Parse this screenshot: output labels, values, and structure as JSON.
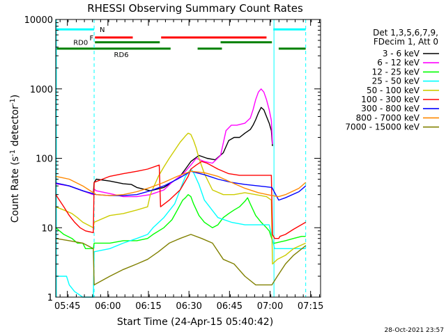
{
  "chart_data": {
    "type": "line",
    "title": "RHESSI Observing Summary Count Rates",
    "xlabel": "Start Time (24-Apr-15 05:40:42)",
    "ylabel_main": "Count Rate (s",
    "ylabel_sup1": "-1",
    "ylabel_mid": " detector",
    "ylabel_sup2": "-1",
    "ylabel_end": ")",
    "x_unit": "minutes after 05:40:42",
    "xlim": [
      0,
      98
    ],
    "ylim": [
      1,
      10000
    ],
    "yscale": "log",
    "x_ticks": [
      {
        "value": 4.3,
        "label": "05:45"
      },
      {
        "value": 19.3,
        "label": "06:00"
      },
      {
        "value": 34.3,
        "label": "06:15"
      },
      {
        "value": 49.3,
        "label": "06:30"
      },
      {
        "value": 64.3,
        "label": "06:45"
      },
      {
        "value": 79.3,
        "label": "07:00"
      },
      {
        "value": 94.3,
        "label": "07:15"
      }
    ],
    "y_ticks": [
      {
        "value": 1,
        "label": "1"
      },
      {
        "value": 10,
        "label": "10"
      },
      {
        "value": 100,
        "label": "100"
      },
      {
        "value": 1000,
        "label": "1000"
      },
      {
        "value": 10000,
        "label": "10000"
      }
    ],
    "vlines_solid": [
      0,
      80.5
    ],
    "vlines_dashed": [
      14.2,
      92.5
    ],
    "legend_header": [
      "Det 1,3,5,6,7,9,",
      "FDecim 1, Att 0"
    ],
    "footer_date": "28-Oct-2021 23:57",
    "flags": [
      {
        "label": "N",
        "color": "#00ffff",
        "level": 7200,
        "segments": [
          [
            0,
            14.2
          ],
          [
            80.5,
            92.5
          ]
        ]
      },
      {
        "label": "F",
        "color": "#ff0000",
        "level": 5500,
        "segments": [
          [
            14.5,
            28.5
          ],
          [
            39,
            78
          ]
        ]
      },
      {
        "label": "RD0",
        "color": "#008000",
        "level": 4700,
        "segments": [
          [
            14.5,
            38.5
          ],
          [
            61,
            80
          ]
        ]
      },
      {
        "label": "RD6",
        "color": "#008000",
        "level": 3800,
        "segments": [
          [
            0,
            42.5
          ],
          [
            52.5,
            61.5
          ],
          [
            82.5,
            92.5
          ]
        ]
      }
    ],
    "series": [
      {
        "name": "3 - 6 keV",
        "color": "#000000",
        "x": [
          0,
          5,
          10,
          13.9,
          14.2,
          15,
          20,
          25,
          28,
          30,
          35,
          40,
          43,
          46,
          48,
          50,
          53,
          56,
          59,
          62,
          64,
          66,
          68,
          70,
          72,
          73,
          74,
          75,
          76,
          77,
          78,
          79,
          79.8,
          80.2
        ],
        "y": [
          44,
          40,
          34,
          30,
          45,
          50,
          47,
          43,
          42,
          38,
          34,
          38,
          45,
          55,
          70,
          90,
          110,
          100,
          95,
          120,
          180,
          200,
          200,
          230,
          260,
          300,
          360,
          450,
          540,
          500,
          400,
          320,
          250,
          150
        ]
      },
      {
        "name": "6 - 12 keV",
        "color": "#ff00ff",
        "x": [
          0,
          5,
          10,
          13.9,
          14.2,
          15,
          20,
          25,
          28,
          30,
          35,
          40,
          43,
          46,
          48,
          50,
          52,
          55,
          58,
          61,
          63,
          65,
          67,
          70,
          72,
          73,
          74,
          75,
          76,
          77,
          78,
          79,
          79.8,
          80.2
        ],
        "y": [
          43,
          40,
          34,
          30,
          36,
          34,
          31,
          28,
          28,
          28,
          30,
          35,
          45,
          55,
          65,
          80,
          100,
          90,
          85,
          110,
          250,
          300,
          300,
          320,
          380,
          500,
          700,
          900,
          1000,
          900,
          700,
          500,
          350,
          160
        ]
      },
      {
        "name": "12 - 25 keV",
        "color": "#00ff00",
        "x": [
          0,
          3,
          6,
          8,
          10,
          11,
          13.9,
          14.2,
          20,
          25,
          30,
          34,
          36,
          40,
          43,
          45,
          47,
          48,
          49,
          50,
          51,
          53,
          55,
          58,
          60,
          62,
          64,
          66,
          68,
          70,
          71,
          72,
          74,
          76,
          78,
          79,
          80.5,
          81,
          85,
          88,
          91,
          92.5
        ],
        "y": [
          10,
          8,
          7,
          6,
          6,
          5,
          5,
          6,
          6,
          6.5,
          6.5,
          7,
          8,
          10,
          13,
          18,
          25,
          27,
          30,
          28,
          22,
          15,
          12,
          10,
          11,
          14,
          16,
          18,
          20,
          24,
          27,
          22,
          15,
          12,
          10,
          9,
          6,
          6,
          6.5,
          7,
          7.5,
          7.5
        ]
      },
      {
        "name": "25 - 50 keV",
        "color": "#00ffff",
        "x": [
          0,
          2,
          4,
          5,
          7,
          10,
          13.9,
          14.2,
          20,
          25,
          30,
          34,
          36,
          40,
          44,
          46,
          48,
          50,
          51,
          53,
          55,
          60,
          65,
          70,
          75,
          79,
          80.5,
          81,
          85,
          90,
          92.5
        ],
        "y": [
          2,
          2,
          2,
          1.5,
          1.2,
          1,
          1,
          4.5,
          5,
          6,
          7,
          8,
          10,
          14,
          22,
          35,
          55,
          70,
          62,
          42,
          25,
          14,
          12,
          11,
          11,
          11,
          6,
          5,
          5,
          5,
          5
        ]
      },
      {
        "name": "50 - 100 keV",
        "color": "#cccc00",
        "x": [
          0,
          3,
          6,
          8,
          10,
          13.9,
          14.2,
          20,
          25,
          30,
          34,
          35,
          38,
          40,
          42,
          44,
          46,
          48,
          49,
          50,
          51,
          52,
          53,
          55,
          58,
          62,
          66,
          70,
          74,
          78,
          79.8,
          80.2,
          82,
          85,
          88,
          92.5
        ],
        "y": [
          20,
          18,
          16,
          14,
          12,
          10,
          12,
          15,
          16,
          18,
          20,
          30,
          55,
          75,
          100,
          130,
          170,
          210,
          230,
          220,
          180,
          140,
          100,
          60,
          35,
          30,
          30,
          32,
          30,
          28,
          25,
          3,
          3.5,
          4,
          5,
          6
        ]
      },
      {
        "name": "100 - 300 keV",
        "color": "#ff0000",
        "x": [
          0,
          3,
          5,
          7,
          9,
          11,
          13.9,
          14.2,
          20,
          25,
          30,
          34,
          38.3,
          38.8,
          42,
          46,
          49,
          50,
          52,
          54,
          56,
          60,
          64,
          68,
          72,
          76,
          79,
          79.8,
          80.2,
          81,
          82.5,
          83,
          85,
          88,
          92.5
        ],
        "y": [
          30,
          20,
          15,
          12,
          10,
          9,
          8.5,
          45,
          55,
          60,
          65,
          70,
          80,
          20,
          25,
          35,
          55,
          70,
          80,
          90,
          85,
          70,
          60,
          57,
          57,
          57,
          57,
          57,
          8,
          7,
          7,
          7.5,
          8,
          9.5,
          12
        ]
      },
      {
        "name": "300 - 800 keV",
        "color": "#0000ff",
        "x": [
          0,
          5,
          10,
          15,
          20,
          25,
          30,
          35,
          40,
          45,
          50,
          55,
          60,
          65,
          70,
          75,
          80,
          82.5,
          85,
          90,
          92.5
        ],
        "y": [
          44,
          40,
          34,
          30,
          29,
          29,
          30,
          34,
          40,
          50,
          65,
          58,
          50,
          45,
          42,
          40,
          38,
          25,
          27,
          33,
          40
        ]
      },
      {
        "name": "800 - 7000 keV",
        "color": "#ff8800",
        "x": [
          0,
          5,
          10,
          15,
          20,
          25,
          30,
          35,
          40,
          45,
          50,
          55,
          60,
          65,
          70,
          75,
          80,
          82.5,
          85,
          90,
          92.5
        ],
        "y": [
          55,
          50,
          40,
          30,
          29,
          30,
          33,
          38,
          45,
          55,
          65,
          62,
          55,
          45,
          37,
          32,
          29,
          28,
          30,
          37,
          45
        ]
      },
      {
        "name": "7000 - 15000 keV",
        "color": "#808000",
        "x": [
          0,
          5,
          10,
          13.9,
          14.2,
          20,
          25,
          30,
          34,
          38,
          42,
          46,
          50,
          54,
          58,
          62,
          66,
          70,
          74,
          78,
          80,
          82,
          85,
          88,
          92.5
        ],
        "y": [
          7,
          6.5,
          6,
          5,
          1.5,
          2,
          2.5,
          3,
          3.5,
          4.5,
          6,
          7,
          8,
          7,
          6,
          3.5,
          3,
          2,
          1.5,
          1.5,
          1.5,
          2,
          3,
          4,
          5.5
        ]
      }
    ]
  }
}
